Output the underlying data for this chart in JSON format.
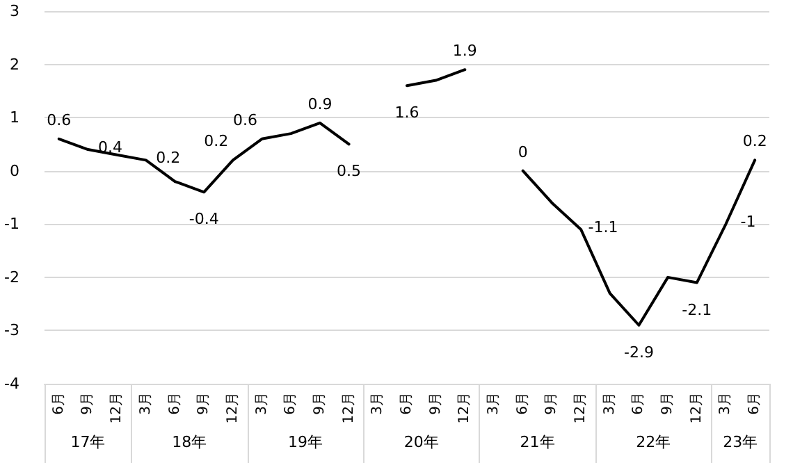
{
  "chart_data": {
    "type": "line",
    "categories": [
      "6月",
      "9月",
      "12月",
      "3月",
      "6月",
      "9月",
      "12月",
      "3月",
      "6月",
      "9月",
      "12月",
      "3月",
      "6月",
      "9月",
      "12月",
      "3月",
      "6月",
      "9月",
      "12月",
      "3月",
      "6月",
      "9月",
      "12月",
      "3月",
      "6月"
    ],
    "annotations": [
      "17年",
      "18年",
      "19年",
      "20年",
      "21年",
      "22年",
      "23年"
    ],
    "series": [
      {
        "color": "#000000",
        "values": [
          0.6,
          0.4,
          0.3,
          0.2,
          -0.2,
          -0.4,
          0.2,
          0.6,
          0.7,
          0.9,
          0.5,
          null,
          1.6,
          1.7,
          1.9,
          null,
          0,
          -0.6,
          -1.1,
          -2.3,
          -2.9,
          -2.0,
          -2.1,
          -1,
          0.2
        ],
        "value_labels": [
          "0.6",
          "0.4",
          null,
          "0.2",
          null,
          "-0.4",
          "0.2",
          "0.6",
          null,
          "0.9",
          "0.5",
          null,
          "1.6",
          null,
          "1.9",
          null,
          "0",
          null,
          "-1.1",
          null,
          "-2.9",
          null,
          "-2.1",
          "-1",
          "0.2"
        ]
      }
    ],
    "ylim": [
      -4,
      3
    ],
    "yticks": [
      -4,
      -3,
      -2,
      -1,
      0,
      1,
      2,
      3
    ],
    "grid": "y",
    "marker": "none",
    "line_style": "solid"
  }
}
